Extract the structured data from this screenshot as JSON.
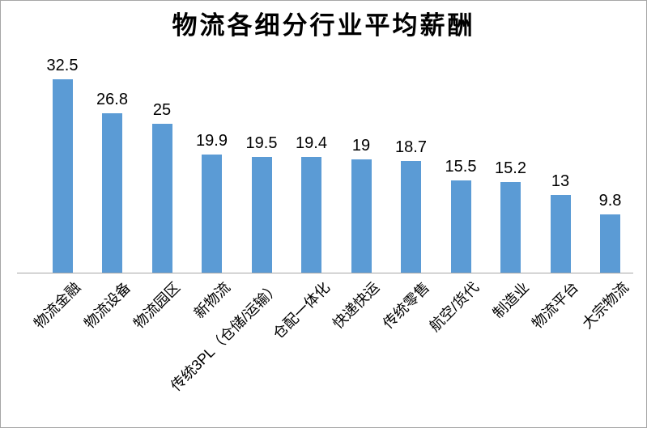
{
  "chart_data": {
    "type": "bar",
    "title": "物流各细分行业平均薪酬",
    "categories": [
      "物流金融",
      "物流设备",
      "物流园区",
      "新物流",
      "传统3PL（仓储/运输）",
      "仓配一体化",
      "快递快运",
      "传统零售",
      "航空/货代",
      "制造业",
      "物流平台",
      "大宗物流"
    ],
    "values": [
      32.5,
      26.8,
      25,
      19.9,
      19.5,
      19.4,
      19,
      18.7,
      15.5,
      15.2,
      13,
      9.8
    ],
    "xlabel": "",
    "ylabel": "",
    "ylim": [
      0,
      35
    ],
    "data_labels": true,
    "gridlines": false,
    "legend": "none",
    "bar_color": "#5B9BD5",
    "axis_color": "#A6A6A6",
    "text_color": "#000000"
  }
}
